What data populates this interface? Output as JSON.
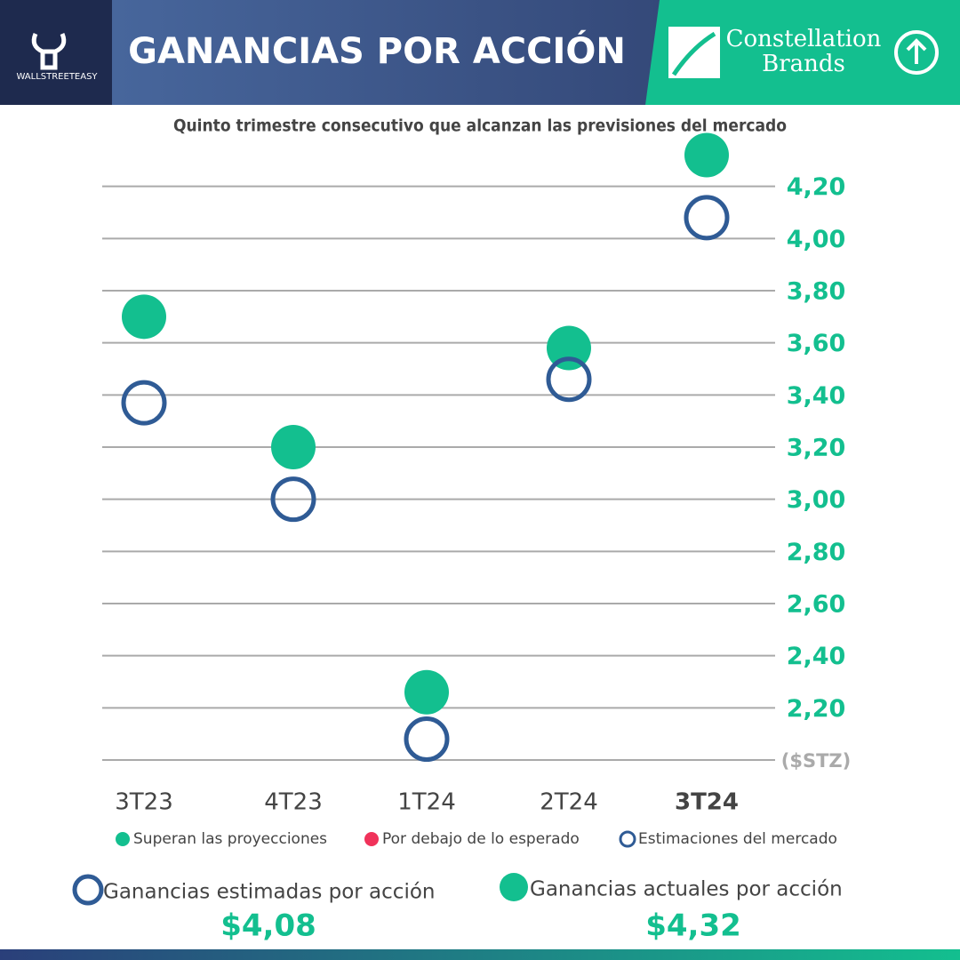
{
  "header": {
    "brand": "WALLSTREETEASY",
    "title": "GANANCIAS POR ACCIÓN",
    "company_line1": "Constellation",
    "company_line2": "Brands"
  },
  "chart_data": {
    "type": "scatter",
    "subtitle": "Quinto trimestre consecutivo que alcanzan las previsiones del mercado",
    "categories": [
      "3T23",
      "4T23",
      "1T24",
      "2T24",
      "3T24"
    ],
    "series": [
      {
        "name": "Superan las proyecciones",
        "color": "#13bf8f",
        "values": [
          3.7,
          3.2,
          2.26,
          3.58,
          4.32
        ]
      },
      {
        "name": "Por debajo de lo esperado",
        "color": "#f0325a",
        "values": [
          null,
          null,
          null,
          null,
          null
        ]
      },
      {
        "name": "Estimaciones del mercado",
        "color": "#2f5b95",
        "values": [
          3.37,
          3.0,
          2.08,
          3.46,
          4.08
        ]
      }
    ],
    "ylim": [
      2.0,
      4.4
    ],
    "yticks": [
      {
        "value": 2.0,
        "label": "($STZ)"
      },
      {
        "value": 2.2,
        "label": "2,20"
      },
      {
        "value": 2.4,
        "label": "2,40"
      },
      {
        "value": 2.6,
        "label": "2,60"
      },
      {
        "value": 2.8,
        "label": "2,80"
      },
      {
        "value": 3.0,
        "label": "3,00"
      },
      {
        "value": 3.2,
        "label": "3,20"
      },
      {
        "value": 3.4,
        "label": "3,40"
      },
      {
        "value": 3.6,
        "label": "3,60"
      },
      {
        "value": 3.8,
        "label": "3,80"
      },
      {
        "value": 4.0,
        "label": "4,00"
      },
      {
        "value": 4.2,
        "label": "4,20"
      }
    ],
    "grid": true
  },
  "summary": {
    "estimated_label": "Ganancias estimadas por acción",
    "estimated_value": "$4,08",
    "actual_label": "Ganancias actuales por acción",
    "actual_value": "$4,32"
  }
}
